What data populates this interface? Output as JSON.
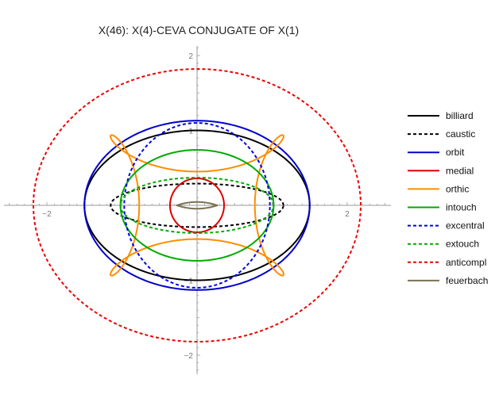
{
  "chart_data": {
    "type": "line",
    "title": "X(46): X(4)-CEVA CONJUGATE OF X(1)",
    "xlabel": "",
    "ylabel": "",
    "xlim": [
      -2.5,
      2.5
    ],
    "ylim": [
      -2.25,
      2.25
    ],
    "x_ticks": [
      {
        "value": -2,
        "label": "−2"
      },
      {
        "value": 2,
        "label": "2"
      }
    ],
    "y_ticks": [
      {
        "value": 2,
        "label": "2"
      },
      {
        "value": 1,
        "label": "1"
      },
      {
        "value": -1,
        "label": "−1"
      },
      {
        "value": -2,
        "label": "−2"
      }
    ],
    "legend_position": "right",
    "series": [
      {
        "name": "billiard",
        "shape": "ellipse",
        "cx": 0,
        "cy": 0,
        "rx": 1.5,
        "ry": 1.0,
        "color": "#000000",
        "dash": "solid"
      },
      {
        "name": "caustic",
        "shape": "ellipse",
        "cx": 0,
        "cy": 0,
        "rx": 1.15,
        "ry": 0.29,
        "color": "#000000",
        "dash": "dashed"
      },
      {
        "name": "orbit",
        "shape": "ellipse",
        "cx": 0,
        "cy": 0,
        "rx": 1.5,
        "ry": 1.13,
        "color": "#0000cc",
        "dash": "solid"
      },
      {
        "name": "medial",
        "shape": "ellipse",
        "cx": 0,
        "cy": 0,
        "rx": 0.36,
        "ry": 0.36,
        "color": "#dd0000",
        "dash": "solid"
      },
      {
        "name": "orthic",
        "shape": "flower",
        "a": 1.2,
        "b": 0.88,
        "c": 0.43,
        "color": "#ff8c00",
        "dash": "solid"
      },
      {
        "name": "intouch",
        "shape": "ellipse",
        "cx": 0,
        "cy": 0,
        "rx": 1.02,
        "ry": 0.74,
        "color": "#00aa00",
        "dash": "solid"
      },
      {
        "name": "excentral",
        "shape": "ellipse",
        "cx": 0,
        "cy": 0,
        "rx": 0.97,
        "ry": 1.1,
        "color": "#0000ee",
        "dash": "dashed"
      },
      {
        "name": "extouch",
        "shape": "ellipse",
        "cx": 0,
        "cy": 0,
        "rx": 1.02,
        "ry": 0.37,
        "color": "#00aa00",
        "dash": "dashed"
      },
      {
        "name": "anticompl",
        "shape": "ellipse",
        "cx": 0,
        "cy": 0,
        "rx": 2.18,
        "ry": 1.82,
        "color": "#ee0000",
        "dash": "dashed"
      },
      {
        "name": "feuerbach",
        "shape": "lens",
        "cx": 0,
        "cy": 0,
        "rx": 0.27,
        "ry": 0.045,
        "color": "#7a7152",
        "dash": "solid"
      }
    ]
  }
}
